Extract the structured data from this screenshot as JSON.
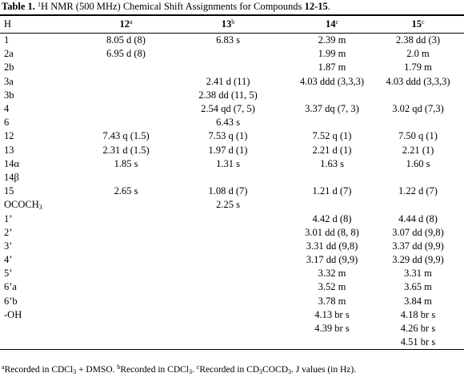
{
  "title": [
    "Table 1.",
    "1",
    "H NMR (500 MHz) Chemical Shift Assignments for Compounds ",
    "12-15",
    "."
  ],
  "table": {
    "header": [
      {
        "label": "H"
      },
      {
        "label": "12",
        "note": "a"
      },
      {
        "label": "13",
        "note": "b"
      },
      {
        "label": "14",
        "note": "c"
      },
      {
        "label": "15",
        "note": "c"
      }
    ],
    "rows": [
      [
        [
          "1"
        ],
        "8.05 d (8)",
        "6.83 s",
        "2.39 m",
        "2.38 dd (3)"
      ],
      [
        [
          "2a"
        ],
        "6.95 d (8)",
        null,
        "1.99 m",
        "2.0 m"
      ],
      [
        [
          "2b"
        ],
        null,
        null,
        "1.87 m",
        "1.79 m"
      ],
      [
        [
          "3a"
        ],
        null,
        "2.41 d (11)",
        "4.03 ddd (3,3,3)",
        "4.03 ddd (3,3,3)"
      ],
      [
        [
          "3b"
        ],
        null,
        "2.38 dd (11, 5)",
        null,
        null
      ],
      [
        [
          "4"
        ],
        null,
        "2.54 qd (7, 5)",
        "3.37 dq (7, 3)",
        "3.02 qd (7,3)"
      ],
      [
        [
          "6"
        ],
        null,
        "6.43 s",
        null,
        null
      ],
      [
        [
          "12"
        ],
        "7.43 q (1.5)",
        "7.53 q (1)",
        "7.52 q (1)",
        "7.50 q (1)"
      ],
      [
        [
          "13"
        ],
        "2.31 d (1.5)",
        "1.97 d (1)",
        "2.21 d (1)",
        "2.21 (1)"
      ],
      [
        [
          "14α"
        ],
        "1.85 s",
        "1.31 s",
        "1.63 s",
        "1.60 s"
      ],
      [
        [
          "14β"
        ],
        null,
        null,
        null,
        null
      ],
      [
        [
          "15"
        ],
        "2.65 s",
        "1.08 d (7)",
        "1.21 d (7)",
        "1.22 d (7)"
      ],
      [
        [
          "OCOCH",
          "3"
        ],
        null,
        "2.25 s",
        null,
        null
      ],
      [
        [
          "1’"
        ],
        null,
        null,
        "4.42 d (8)",
        "4.44 d (8)"
      ],
      [
        [
          "2’"
        ],
        null,
        null,
        "3.01 dd (8, 8)",
        "3.07 dd (9,8)"
      ],
      [
        [
          "3’"
        ],
        null,
        null,
        "3.31 dd (9,8)",
        "3.37 dd (9,9)"
      ],
      [
        [
          "4’"
        ],
        null,
        null,
        "3.17 dd (9,9)",
        "3.29 dd (9,9)"
      ],
      [
        [
          "5’"
        ],
        null,
        null,
        "3.32 m",
        "3.31 m"
      ],
      [
        [
          "6’a"
        ],
        null,
        null,
        "3.52 m",
        "3.65 m"
      ],
      [
        [
          "6’b"
        ],
        null,
        null,
        "3.78 m",
        "3.84 m"
      ],
      [
        [
          "-OH"
        ],
        null,
        null,
        "4.13 br s",
        "4.18 br s"
      ],
      [
        null,
        null,
        null,
        "4.39 br s",
        "4.26 br s"
      ],
      [
        null,
        null,
        null,
        null,
        "4.51 br s"
      ]
    ]
  },
  "footnote": [
    "a",
    "Recorded in CDCl",
    "3",
    " + DMSO. ",
    "b",
    "Recorded in CDCl",
    "3",
    ". ",
    "c",
    "Recorded in CD",
    "3",
    "COCD",
    "3",
    ". J values (in Hz)."
  ]
}
